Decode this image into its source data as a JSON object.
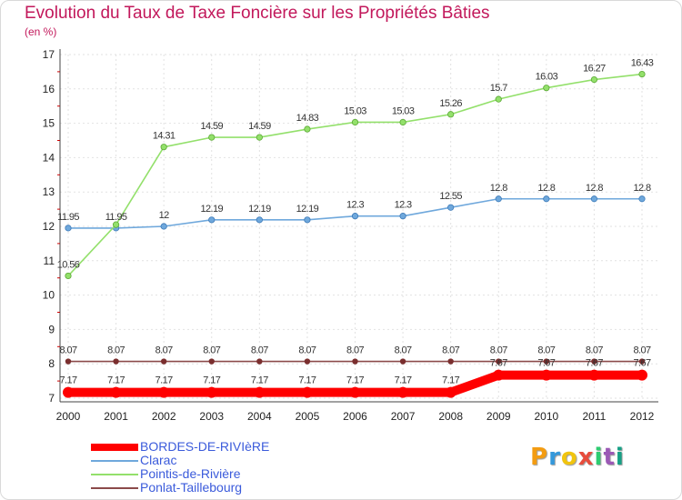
{
  "title": "Evolution du Taux de Taxe Foncière sur les Propriétés Bâties",
  "unit": "(en %)",
  "logo": {
    "text": "Proxiti",
    "colors": [
      "#f39c12",
      "#3498db",
      "#f1c40f",
      "#e74c3c",
      "#2ecc71",
      "#9b59b6",
      "#16a085"
    ]
  },
  "chart_data": {
    "type": "line",
    "title": "Evolution du Taux de Taxe Foncière sur les Propriétés Bâties",
    "ylabel": "(en %)",
    "xlabel": "",
    "ylim": [
      7,
      17
    ],
    "yticks": [
      "7",
      "8",
      "9",
      "10",
      "11",
      "12",
      "13",
      "14",
      "15",
      "16",
      "17"
    ],
    "categories": [
      "2000",
      "2001",
      "2002",
      "2003",
      "2004",
      "2005",
      "2006",
      "2007",
      "2008",
      "2009",
      "2010",
      "2011",
      "2012"
    ],
    "series": [
      {
        "name": "BORDES-DE-RIVIèRE",
        "color": "#ff0000",
        "values": [
          7.17,
          7.17,
          7.17,
          7.17,
          7.17,
          7.17,
          7.17,
          7.17,
          7.17,
          7.67,
          7.67,
          7.67,
          7.67
        ],
        "labels": [
          "7.17",
          "7.17",
          "7.17",
          "7.17",
          "7.17",
          "7.17",
          "7.17",
          "7.17",
          "7.17",
          "7.67",
          "7.67",
          "7.67",
          "7.67"
        ]
      },
      {
        "name": "Clarac",
        "color": "#6fa8dc",
        "values": [
          11.95,
          11.95,
          12,
          12.19,
          12.19,
          12.19,
          12.3,
          12.3,
          12.55,
          12.8,
          12.8,
          12.8,
          12.8
        ],
        "labels": [
          "11.95",
          "11.95",
          "12",
          "12.19",
          "12.19",
          "12.19",
          "12.3",
          "12.3",
          "12.55",
          "12.8",
          "12.8",
          "12.8",
          "12.8"
        ]
      },
      {
        "name": "Pointis-de-Rivière",
        "color": "#93e06b",
        "values": [
          10.56,
          12.05,
          14.31,
          14.59,
          14.59,
          14.83,
          15.03,
          15.03,
          15.26,
          15.7,
          16.03,
          16.27,
          16.43
        ],
        "labels": [
          "10.56",
          "",
          "14.31",
          "14.59",
          "14.59",
          "14.83",
          "15.03",
          "15.03",
          "15.26",
          "15.7",
          "16.03",
          "16.27",
          "16.43"
        ]
      },
      {
        "name": "Ponlat-Taillebourg",
        "color": "#8b4a4a",
        "values": [
          8.07,
          8.07,
          8.07,
          8.07,
          8.07,
          8.07,
          8.07,
          8.07,
          8.07,
          8.07,
          8.07,
          8.07,
          8.07
        ],
        "labels": [
          "8.07",
          "8.07",
          "8.07",
          "8.07",
          "8.07",
          "8.07",
          "8.07",
          "8.07",
          "8.07",
          "8.07",
          "8.07",
          "8.07",
          "8.07"
        ]
      }
    ]
  }
}
